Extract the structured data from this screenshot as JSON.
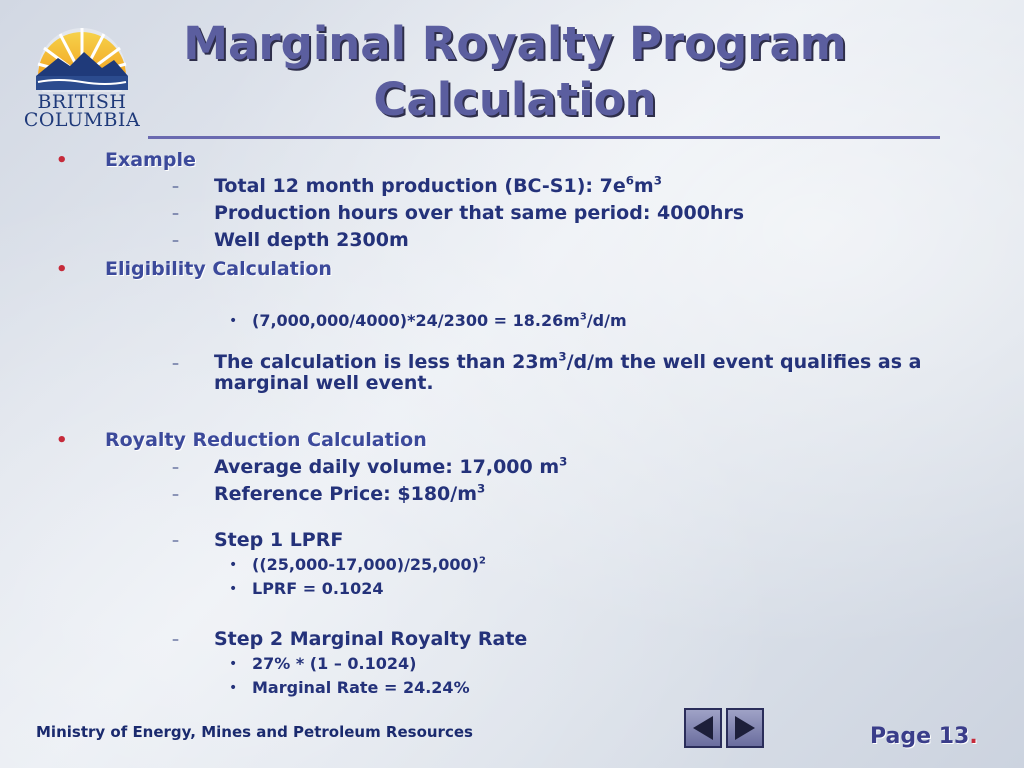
{
  "logo": {
    "line1": "BRITISH",
    "line2": "COLUMBIA"
  },
  "title": {
    "line1": "Marginal Royalty Program",
    "line2": "Calculation"
  },
  "sections": {
    "example": {
      "heading": "Example",
      "items": [
        "Total 12 month production (BC-S1): 7e",
        "Production hours over that same period: 4000hrs",
        "Well depth 2300m"
      ],
      "item1_sup1": "6",
      "item1_mid": "m",
      "item1_sup2": "3"
    },
    "eligibility": {
      "heading": "Eligibility Calculation",
      "formula_a": "(7,000,000/4000)*24/2300 = 18.26m",
      "formula_sup": "3",
      "formula_b": "/d/m",
      "result_a": "The calculation is less than 23m",
      "result_sup": "3",
      "result_b": "/d/m the well event qualifies as a",
      "result_c": "marginal well event."
    },
    "royalty": {
      "heading": "Royalty Reduction Calculation",
      "avg_a": "Average daily volume: 17,000 m",
      "avg_sup": "3",
      "ref_a": "Reference Price: $180/m",
      "ref_sup": "3",
      "step1": "Step 1 LPRF",
      "step1_formula": "((25,000-17,000)/25,000)",
      "step1_sup": "2",
      "step1_result": "LPRF = 0.1024",
      "step2": "Step 2 Marginal Royalty Rate",
      "step2_formula": "27% * (1 – 0.1024)",
      "step2_result": "Marginal Rate = 24.24%"
    }
  },
  "footer": {
    "ministry": "Ministry of Energy, Mines and Petroleum Resources",
    "page_label": "Page 13",
    "page_suffix": "."
  },
  "icons": {
    "prev": "left-arrow-icon",
    "next": "right-arrow-icon"
  },
  "colors": {
    "title": "#5b5e9f",
    "heading": "#3c4a9b",
    "bullet": "#c62a3a",
    "text": "#24327a"
  }
}
